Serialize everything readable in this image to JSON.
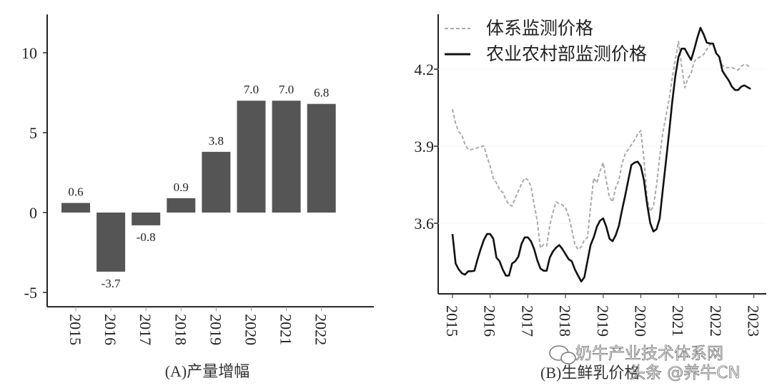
{
  "chart_data": [
    {
      "type": "bar",
      "title": "",
      "caption": "(A)产量增幅",
      "xlabel": "",
      "ylabel": "",
      "categories": [
        "2015",
        "2016",
        "2017",
        "2018",
        "2019",
        "2020",
        "2021",
        "2022"
      ],
      "values": [
        0.6,
        -3.7,
        -0.8,
        0.9,
        3.8,
        7.0,
        7.0,
        6.8
      ],
      "data_labels": [
        "0.6",
        "-3.7",
        "-0.8",
        "0.9",
        "3.8",
        "7.0",
        "7.0",
        "6.8"
      ],
      "yticks": [
        "-5",
        "0",
        "5",
        "10"
      ],
      "ytick_values": [
        -5,
        0,
        5,
        10
      ],
      "ylim": [
        -5.9,
        12.4
      ],
      "grid": false,
      "bar_color": "#555555"
    },
    {
      "type": "line",
      "title": "",
      "caption": "(B)生鲜乳价格",
      "xlabel": "",
      "ylabel": "",
      "xticks": [
        "2015",
        "2016",
        "2017",
        "2018",
        "2019",
        "2020",
        "2021",
        "2022",
        "2023"
      ],
      "yticks": [
        "3.6",
        "3.9",
        "4.2"
      ],
      "ytick_values": [
        3.6,
        3.9,
        4.2
      ],
      "ylim": [
        3.325,
        4.417
      ],
      "xlim": [
        "2015-01",
        "2023-01"
      ],
      "grid": false,
      "legend_position": "top-left",
      "x_start": "2015-01",
      "x_frequency": "monthly",
      "series": [
        {
          "name": "体系监测价格",
          "color": "#aaaaaa",
          "style": "dashed",
          "values": [
            4.044,
            3.989,
            3.956,
            3.943,
            3.906,
            3.887,
            3.887,
            3.89,
            3.894,
            3.898,
            3.901,
            3.859,
            3.822,
            3.776,
            3.757,
            3.73,
            3.72,
            3.693,
            3.672,
            3.667,
            3.697,
            3.725,
            3.753,
            3.776,
            3.769,
            3.744,
            3.674,
            3.609,
            3.503,
            3.517,
            3.512,
            3.591,
            3.642,
            3.683,
            3.676,
            3.672,
            3.66,
            3.628,
            3.577,
            3.517,
            3.498,
            3.507,
            3.535,
            3.544,
            3.665,
            3.776,
            3.757,
            3.804,
            3.836,
            3.767,
            3.702,
            3.683,
            3.739,
            3.767,
            3.831,
            3.869,
            3.887,
            3.906,
            3.924,
            3.947,
            3.961,
            3.85,
            3.693,
            3.646,
            3.665,
            3.748,
            3.859,
            3.952,
            4.017,
            4.081,
            4.165,
            4.239,
            4.308,
            4.211,
            4.128,
            4.165,
            4.183,
            4.23,
            4.243,
            4.248,
            4.257,
            4.276,
            4.294,
            4.304,
            4.267,
            4.243,
            4.215,
            4.206,
            4.206,
            4.206,
            4.202,
            4.197,
            4.211,
            4.219,
            4.215,
            4.206
          ]
        },
        {
          "name": "农业农村部监测价格",
          "color": "#111111",
          "style": "solid",
          "values": [
            3.558,
            3.443,
            3.42,
            3.405,
            3.4,
            3.413,
            3.413,
            3.415,
            3.46,
            3.5,
            3.535,
            3.558,
            3.558,
            3.54,
            3.466,
            3.452,
            3.42,
            3.396,
            3.396,
            3.443,
            3.452,
            3.47,
            3.52,
            3.545,
            3.545,
            3.53,
            3.5,
            3.456,
            3.424,
            3.415,
            3.415,
            3.466,
            3.49,
            3.505,
            3.515,
            3.5,
            3.48,
            3.46,
            3.452,
            3.42,
            3.396,
            3.373,
            3.39,
            3.452,
            3.515,
            3.545,
            3.586,
            3.61,
            3.619,
            3.586,
            3.54,
            3.53,
            3.554,
            3.59,
            3.65,
            3.706,
            3.767,
            3.827,
            3.836,
            3.84,
            3.822,
            3.767,
            3.674,
            3.6,
            3.568,
            3.577,
            3.619,
            3.73,
            3.84,
            3.952,
            4.072,
            4.174,
            4.248,
            4.28,
            4.28,
            4.257,
            4.236,
            4.277,
            4.322,
            4.361,
            4.336,
            4.304,
            4.3,
            4.3,
            4.262,
            4.248,
            4.193,
            4.174,
            4.156,
            4.132,
            4.119,
            4.119,
            4.132,
            4.137,
            4.13,
            4.123
          ]
        }
      ]
    }
  ],
  "watermark": {
    "line1": "奶牛产业技术体系网",
    "line2": "头条 @养牛CN",
    "icon": "wechat-icon"
  }
}
